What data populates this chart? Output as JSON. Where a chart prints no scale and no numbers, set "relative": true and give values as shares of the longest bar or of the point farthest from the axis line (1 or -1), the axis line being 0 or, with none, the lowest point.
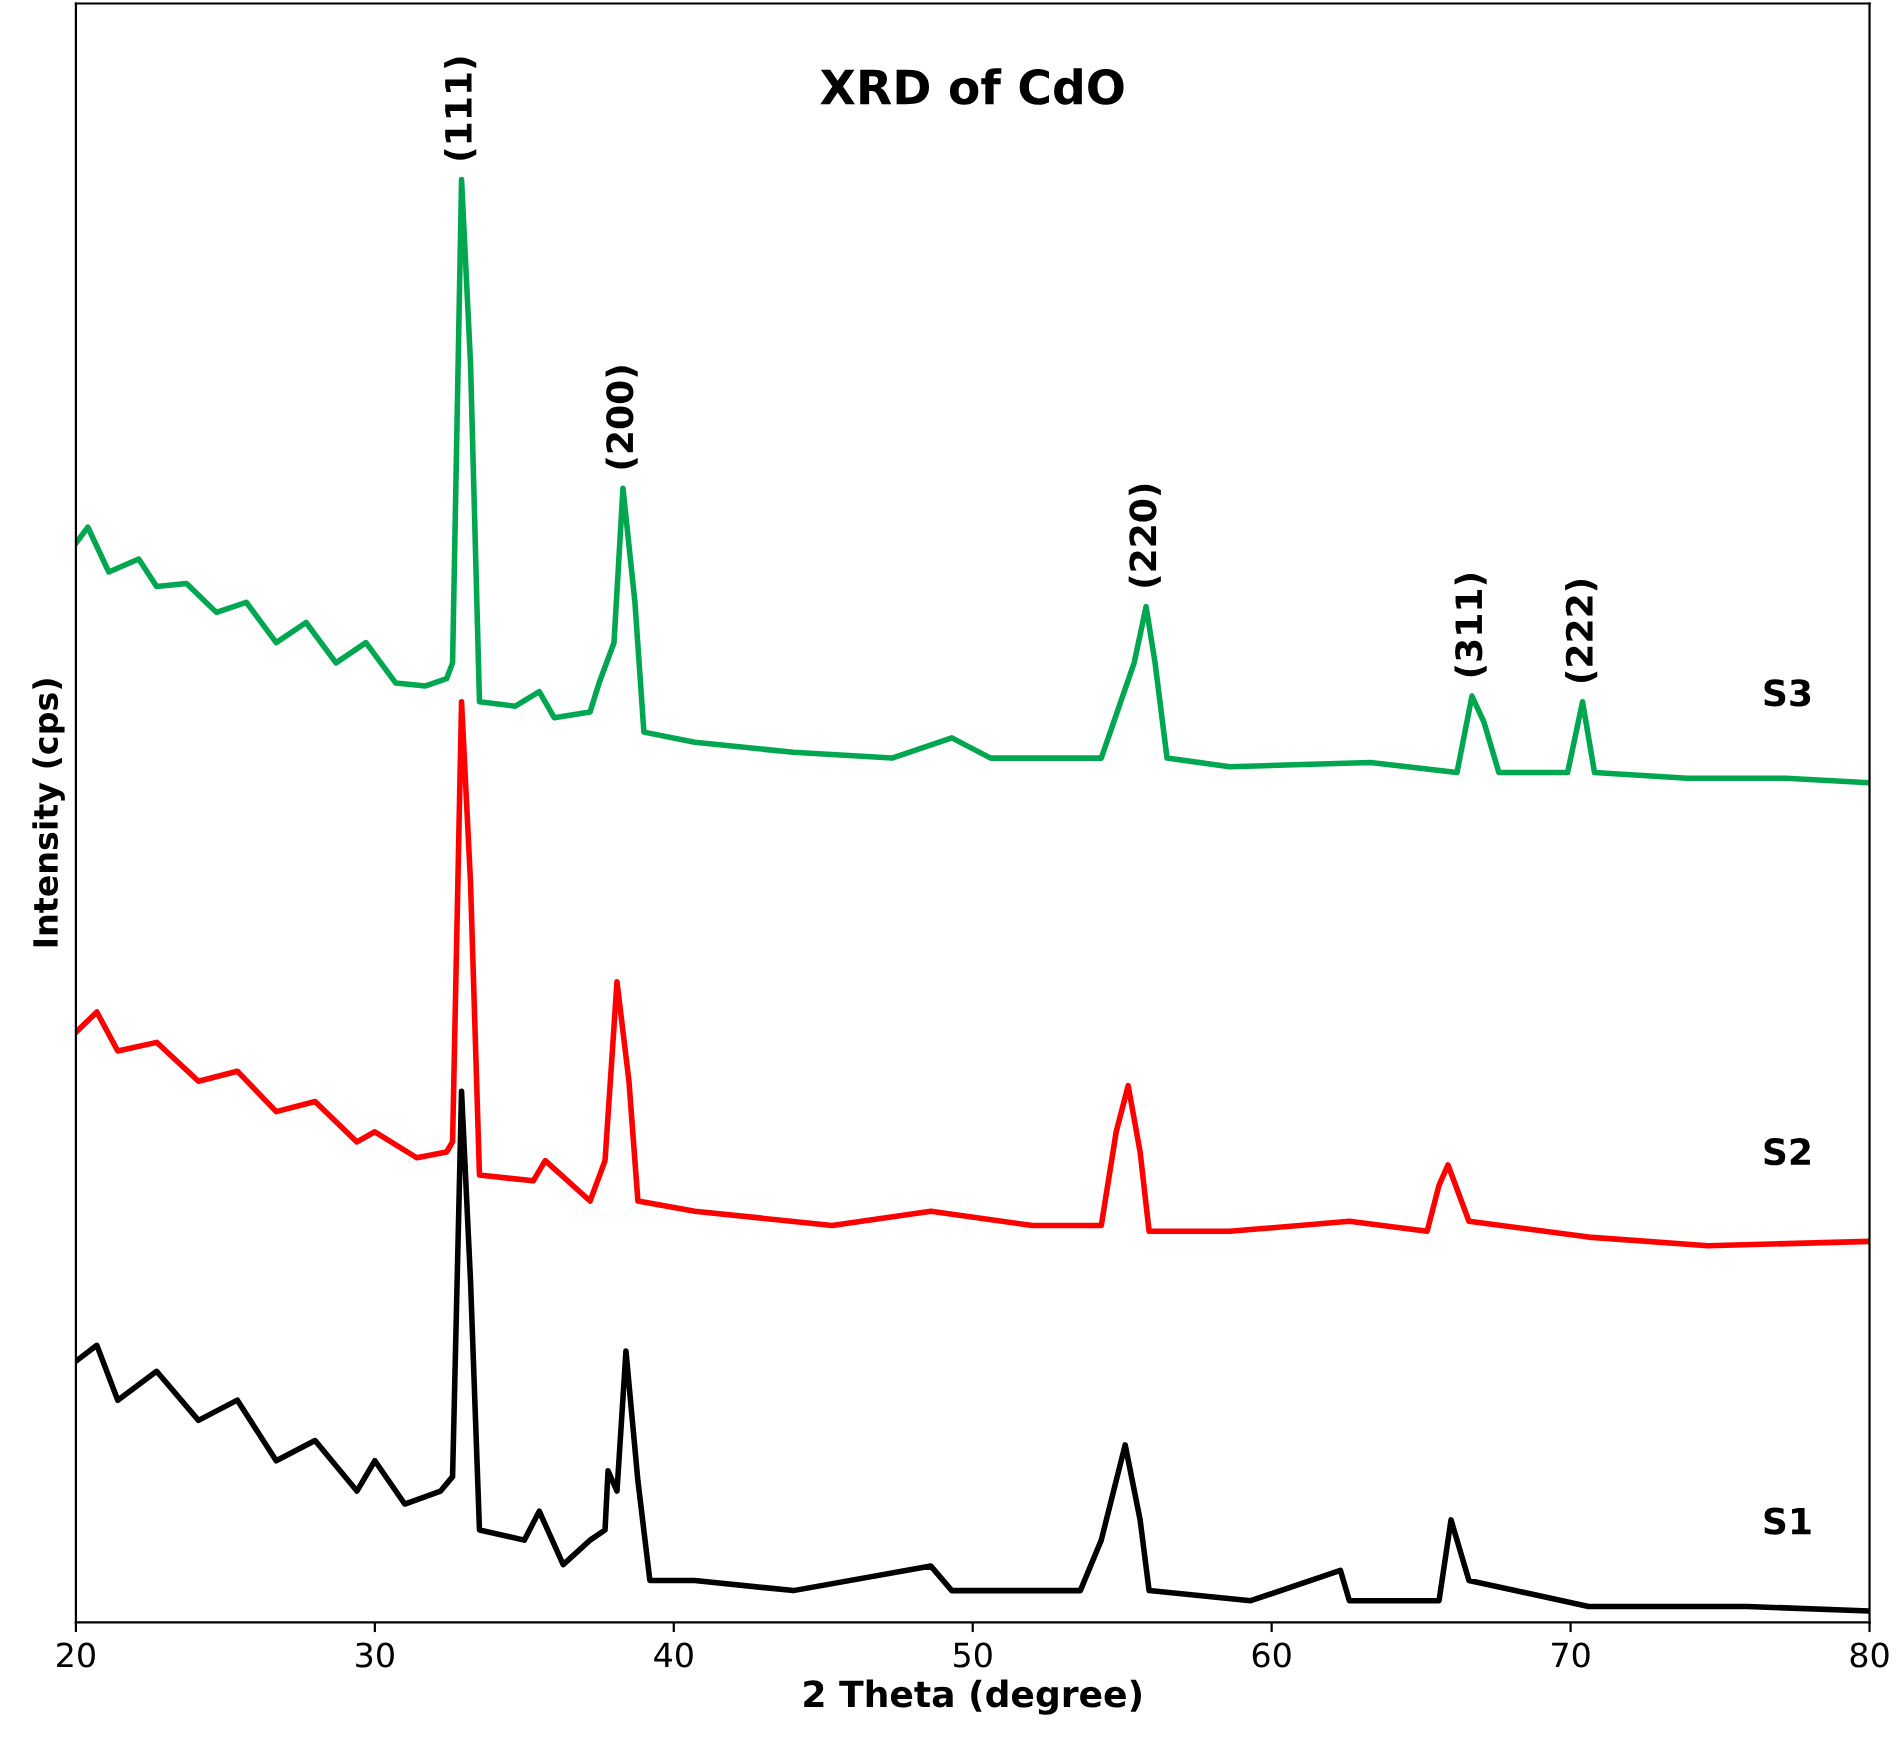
{
  "chart_data": {
    "type": "line",
    "title": "XRD of CdO",
    "xlabel": "2 Theta (degree)",
    "ylabel": "Intensity (cps)",
    "relative": true,
    "xlim": [
      20,
      80
    ],
    "xticks": [
      20,
      30,
      40,
      50,
      60,
      70,
      80
    ],
    "tick_labels": "x",
    "grid": false,
    "legend": false,
    "marker": "none",
    "line_style": "solid",
    "series": [
      {
        "name": "S3",
        "color": "#00a650",
        "x": [
          20,
          20.4,
          21.1,
          22.1,
          22.7,
          23.7,
          24.7,
          25.7,
          26.7,
          27.7,
          28.7,
          29.7,
          30.7,
          31.7,
          32.4,
          32.6,
          32.9,
          33.2,
          33.5,
          34.7,
          35.5,
          36.0,
          37.2,
          37.5,
          38.0,
          38.3,
          38.7,
          39.0,
          40.7,
          44.0,
          47.3,
          49.3,
          50.6,
          54.3,
          55.4,
          55.8,
          56.1,
          56.5,
          58.6,
          63.3,
          66.2,
          66.7,
          67.1,
          67.6,
          69.9,
          70.4,
          70.8,
          73.9,
          77.2,
          79.9
        ],
        "values": [
          0.748,
          0.759,
          0.728,
          0.737,
          0.718,
          0.72,
          0.7,
          0.707,
          0.679,
          0.693,
          0.665,
          0.679,
          0.651,
          0.649,
          0.654,
          0.665,
          1.0,
          0.873,
          0.638,
          0.635,
          0.645,
          0.627,
          0.631,
          0.651,
          0.679,
          0.786,
          0.707,
          0.617,
          0.61,
          0.603,
          0.599,
          0.613,
          0.599,
          0.599,
          0.665,
          0.704,
          0.665,
          0.599,
          0.593,
          0.596,
          0.589,
          0.642,
          0.624,
          0.589,
          0.589,
          0.638,
          0.589,
          0.585,
          0.585,
          0.582
        ]
      },
      {
        "name": "S2",
        "color": "#ff0000",
        "x": [
          20,
          20.7,
          21.4,
          22.7,
          24.1,
          25.4,
          26.7,
          28.0,
          29.4,
          30.0,
          31.4,
          32.4,
          32.6,
          32.9,
          33.2,
          33.5,
          35.3,
          35.7,
          37.2,
          37.7,
          38.1,
          38.5,
          38.8,
          40.7,
          45.3,
          48.6,
          52.0,
          54.3,
          54.8,
          55.2,
          55.6,
          55.9,
          58.6,
          62.6,
          65.2,
          65.6,
          65.9,
          66.6,
          70.6,
          74.6,
          79.9
        ],
        "values": [
          0.409,
          0.423,
          0.396,
          0.402,
          0.375,
          0.382,
          0.354,
          0.361,
          0.333,
          0.34,
          0.322,
          0.326,
          0.333,
          0.638,
          0.513,
          0.31,
          0.306,
          0.32,
          0.292,
          0.32,
          0.444,
          0.375,
          0.292,
          0.285,
          0.275,
          0.285,
          0.275,
          0.275,
          0.34,
          0.372,
          0.326,
          0.271,
          0.271,
          0.278,
          0.271,
          0.303,
          0.317,
          0.278,
          0.267,
          0.261,
          0.264
        ]
      },
      {
        "name": "S1",
        "color": "#000000",
        "x": [
          20,
          20.7,
          21.4,
          22.7,
          24.1,
          25.4,
          26.7,
          28.0,
          29.4,
          30.0,
          31.0,
          32.2,
          32.6,
          32.9,
          33.2,
          33.5,
          35.0,
          35.5,
          36.3,
          37.2,
          37.7,
          37.8,
          38.1,
          38.4,
          38.8,
          39.2,
          40.7,
          44.0,
          48.6,
          49.3,
          53.6,
          54.3,
          55.1,
          55.6,
          55.9,
          59.3,
          62.3,
          62.6,
          65.6,
          66.0,
          66.6,
          70.6,
          75.9,
          79.9
        ],
        "values": [
          0.181,
          0.192,
          0.154,
          0.174,
          0.14,
          0.154,
          0.112,
          0.126,
          0.091,
          0.112,
          0.082,
          0.091,
          0.101,
          0.368,
          0.237,
          0.064,
          0.057,
          0.077,
          0.04,
          0.057,
          0.064,
          0.105,
          0.091,
          0.188,
          0.098,
          0.029,
          0.029,
          0.022,
          0.039,
          0.022,
          0.022,
          0.057,
          0.123,
          0.071,
          0.022,
          0.015,
          0.036,
          0.015,
          0.015,
          0.071,
          0.029,
          0.011,
          0.011,
          0.008
        ]
      }
    ],
    "annotations": [
      {
        "text": "(111)",
        "x": 32.9,
        "y": 1.0
      },
      {
        "text": "(200)",
        "x": 38.3,
        "y": 0.786
      },
      {
        "text": "(220)",
        "x": 55.8,
        "y": 0.704
      },
      {
        "text": "(311)",
        "x": 66.7,
        "y": 0.642
      },
      {
        "text": "(222)",
        "x": 70.4,
        "y": 0.638
      }
    ]
  }
}
